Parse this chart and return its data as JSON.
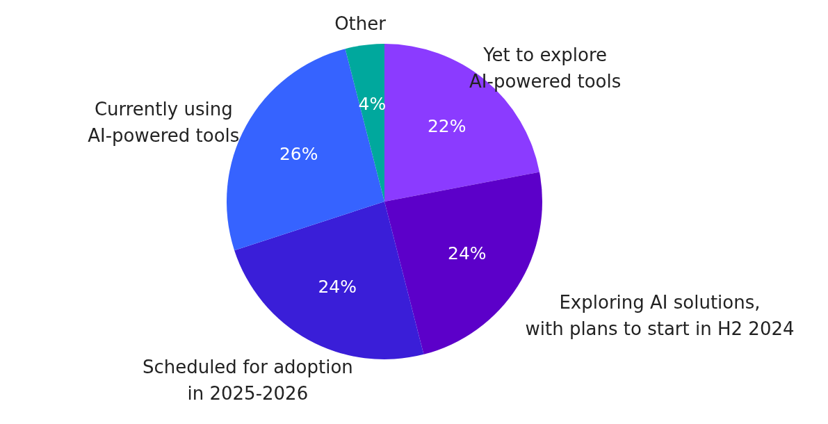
{
  "chart_data": {
    "type": "pie",
    "categories": [
      "Yet to explore\nAI-powered tools",
      "Exploring AI solutions,\nwith plans to start in H2 2024",
      "Scheduled for adoption\nin 2025-2026",
      "Currently using\nAI-powered tools",
      "Other"
    ],
    "values": [
      22,
      24,
      24,
      26,
      4
    ],
    "value_labels": [
      "22%",
      "24%",
      "24%",
      "26%",
      "4%"
    ],
    "colors": [
      "#8b3bff",
      "#5c00c9",
      "#3a1ed8",
      "#3663ff",
      "#00a89d"
    ]
  }
}
